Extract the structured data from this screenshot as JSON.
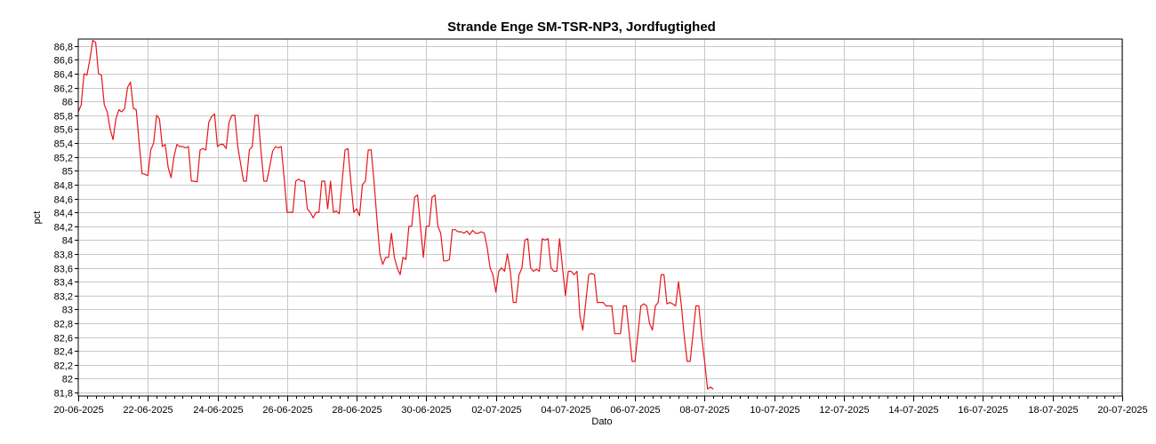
{
  "chart_data": {
    "type": "line",
    "title": "Strande Enge SM-TSR-NP3, Jordfugtighed",
    "xlabel": "Dato",
    "ylabel": "pct",
    "x_range": [
      "2025-06-20",
      "2025-07-20"
    ],
    "ylim": [
      81.75,
      86.9
    ],
    "yticks": [
      81.8,
      82,
      82.2,
      82.4,
      82.6,
      82.8,
      83,
      83.2,
      83.4,
      83.6,
      83.8,
      84,
      84.2,
      84.4,
      84.6,
      84.8,
      85,
      85.2,
      85.4,
      85.6,
      85.8,
      86,
      86.2,
      86.4,
      86.6,
      86.8
    ],
    "ytick_labels": [
      "81,8",
      "82",
      "82,2",
      "82,4",
      "82,6",
      "82,8",
      "83",
      "83,2",
      "83,4",
      "83,6",
      "83,8",
      "84",
      "84,2",
      "84,4",
      "84,6",
      "84,8",
      "85",
      "85,2",
      "85,4",
      "85,6",
      "85,8",
      "86",
      "86,2",
      "86,4",
      "86,6",
      "86,8"
    ],
    "xticks": [
      "2025-06-20",
      "2025-06-22",
      "2025-06-24",
      "2025-06-26",
      "2025-06-28",
      "2025-06-30",
      "2025-07-02",
      "2025-07-04",
      "2025-07-06",
      "2025-07-08",
      "2025-07-10",
      "2025-07-12",
      "2025-07-14",
      "2025-07-16",
      "2025-07-18",
      "2025-07-20"
    ],
    "xtick_labels": [
      "20-06-2025",
      "22-06-2025",
      "24-06-2025",
      "26-06-2025",
      "28-06-2025",
      "30-06-2025",
      "02-07-2025",
      "04-07-2025",
      "06-07-2025",
      "08-07-2025",
      "10-07-2025",
      "12-07-2025",
      "14-07-2025",
      "16-07-2025",
      "18-07-2025",
      "20-07-2025"
    ],
    "grid": true,
    "series": [
      {
        "color": "#e8151b",
        "points": [
          [
            "2025-06-20T00:00",
            85.85
          ],
          [
            "2025-06-20T02:00",
            85.95
          ],
          [
            "2025-06-20T04:00",
            86.4
          ],
          [
            "2025-06-20T06:00",
            86.38
          ],
          [
            "2025-06-20T08:00",
            86.6
          ],
          [
            "2025-06-20T10:00",
            86.88
          ],
          [
            "2025-06-20T12:00",
            86.85
          ],
          [
            "2025-06-20T14:00",
            86.4
          ],
          [
            "2025-06-20T16:00",
            86.38
          ],
          [
            "2025-06-20T18:00",
            85.95
          ],
          [
            "2025-06-20T20:00",
            85.85
          ],
          [
            "2025-06-20T22:00",
            85.6
          ],
          [
            "2025-06-21T00:00",
            85.45
          ],
          [
            "2025-06-21T02:00",
            85.75
          ],
          [
            "2025-06-21T04:00",
            85.88
          ],
          [
            "2025-06-21T06:00",
            85.85
          ],
          [
            "2025-06-21T08:00",
            85.9
          ],
          [
            "2025-06-21T10:00",
            86.2
          ],
          [
            "2025-06-21T12:00",
            86.28
          ],
          [
            "2025-06-21T14:00",
            85.9
          ],
          [
            "2025-06-21T16:00",
            85.88
          ],
          [
            "2025-06-21T18:00",
            85.4
          ],
          [
            "2025-06-21T20:00",
            84.96
          ],
          [
            "2025-06-21T22:00",
            84.95
          ],
          [
            "2025-06-22T00:00",
            84.93
          ],
          [
            "2025-06-22T02:00",
            85.3
          ],
          [
            "2025-06-22T04:00",
            85.4
          ],
          [
            "2025-06-22T06:00",
            85.8
          ],
          [
            "2025-06-22T08:00",
            85.75
          ],
          [
            "2025-06-22T10:00",
            85.35
          ],
          [
            "2025-06-22T12:00",
            85.38
          ],
          [
            "2025-06-22T14:00",
            85.05
          ],
          [
            "2025-06-22T16:00",
            84.9
          ],
          [
            "2025-06-22T18:00",
            85.2
          ],
          [
            "2025-06-22T20:00",
            85.38
          ],
          [
            "2025-06-22T22:00",
            85.35
          ],
          [
            "2025-06-23T00:00",
            85.35
          ],
          [
            "2025-06-23T02:00",
            85.33
          ],
          [
            "2025-06-23T04:00",
            85.35
          ],
          [
            "2025-06-23T06:00",
            84.85
          ],
          [
            "2025-06-23T08:00",
            84.85
          ],
          [
            "2025-06-23T10:00",
            84.84
          ],
          [
            "2025-06-23T12:00",
            85.3
          ],
          [
            "2025-06-23T14:00",
            85.32
          ],
          [
            "2025-06-23T16:00",
            85.3
          ],
          [
            "2025-06-23T18:00",
            85.7
          ],
          [
            "2025-06-23T20:00",
            85.78
          ],
          [
            "2025-06-23T22:00",
            85.82
          ],
          [
            "2025-06-24T00:00",
            85.35
          ],
          [
            "2025-06-24T02:00",
            85.38
          ],
          [
            "2025-06-24T04:00",
            85.38
          ],
          [
            "2025-06-24T06:00",
            85.32
          ],
          [
            "2025-06-24T08:00",
            85.7
          ],
          [
            "2025-06-24T10:00",
            85.8
          ],
          [
            "2025-06-24T12:00",
            85.8
          ],
          [
            "2025-06-24T14:00",
            85.35
          ],
          [
            "2025-06-24T16:00",
            85.1
          ],
          [
            "2025-06-24T18:00",
            84.85
          ],
          [
            "2025-06-24T20:00",
            84.85
          ],
          [
            "2025-06-24T22:00",
            85.3
          ],
          [
            "2025-06-25T00:00",
            85.35
          ],
          [
            "2025-06-25T02:00",
            85.8
          ],
          [
            "2025-06-25T04:00",
            85.8
          ],
          [
            "2025-06-25T06:00",
            85.3
          ],
          [
            "2025-06-25T08:00",
            84.85
          ],
          [
            "2025-06-25T10:00",
            84.85
          ],
          [
            "2025-06-25T12:00",
            85.05
          ],
          [
            "2025-06-25T14:00",
            85.28
          ],
          [
            "2025-06-25T16:00",
            85.35
          ],
          [
            "2025-06-25T18:00",
            85.33
          ],
          [
            "2025-06-25T20:00",
            85.35
          ],
          [
            "2025-06-25T22:00",
            84.9
          ],
          [
            "2025-06-26T00:00",
            84.4
          ],
          [
            "2025-06-26T02:00",
            84.4
          ],
          [
            "2025-06-26T04:00",
            84.4
          ],
          [
            "2025-06-26T06:00",
            84.85
          ],
          [
            "2025-06-26T08:00",
            84.88
          ],
          [
            "2025-06-26T10:00",
            84.85
          ],
          [
            "2025-06-26T12:00",
            84.85
          ],
          [
            "2025-06-26T14:00",
            84.45
          ],
          [
            "2025-06-26T16:00",
            84.4
          ],
          [
            "2025-06-26T18:00",
            84.32
          ],
          [
            "2025-06-26T20:00",
            84.4
          ],
          [
            "2025-06-26T22:00",
            84.4
          ],
          [
            "2025-06-27T00:00",
            84.85
          ],
          [
            "2025-06-27T02:00",
            84.85
          ],
          [
            "2025-06-27T04:00",
            84.45
          ],
          [
            "2025-06-27T06:00",
            84.85
          ],
          [
            "2025-06-27T08:00",
            84.4
          ],
          [
            "2025-06-27T10:00",
            84.42
          ],
          [
            "2025-06-27T12:00",
            84.38
          ],
          [
            "2025-06-27T14:00",
            84.85
          ],
          [
            "2025-06-27T16:00",
            85.3
          ],
          [
            "2025-06-27T18:00",
            85.32
          ],
          [
            "2025-06-27T20:00",
            84.85
          ],
          [
            "2025-06-27T22:00",
            84.4
          ],
          [
            "2025-06-28T00:00",
            84.45
          ],
          [
            "2025-06-28T02:00",
            84.35
          ],
          [
            "2025-06-28T04:00",
            84.8
          ],
          [
            "2025-06-28T06:00",
            84.85
          ],
          [
            "2025-06-28T08:00",
            85.3
          ],
          [
            "2025-06-28T10:00",
            85.3
          ],
          [
            "2025-06-28T12:00",
            84.85
          ],
          [
            "2025-06-28T14:00",
            84.3
          ],
          [
            "2025-06-28T16:00",
            83.8
          ],
          [
            "2025-06-28T18:00",
            83.65
          ],
          [
            "2025-06-28T20:00",
            83.75
          ],
          [
            "2025-06-28T22:00",
            83.75
          ],
          [
            "2025-06-29T00:00",
            84.1
          ],
          [
            "2025-06-29T02:00",
            83.75
          ],
          [
            "2025-06-29T04:00",
            83.6
          ],
          [
            "2025-06-29T06:00",
            83.5
          ],
          [
            "2025-06-29T08:00",
            83.75
          ],
          [
            "2025-06-29T10:00",
            83.72
          ],
          [
            "2025-06-29T12:00",
            84.2
          ],
          [
            "2025-06-29T14:00",
            84.2
          ],
          [
            "2025-06-29T16:00",
            84.62
          ],
          [
            "2025-06-29T18:00",
            84.65
          ],
          [
            "2025-06-29T20:00",
            84.2
          ],
          [
            "2025-06-29T22:00",
            83.75
          ],
          [
            "2025-06-30T00:00",
            84.2
          ],
          [
            "2025-06-30T02:00",
            84.2
          ],
          [
            "2025-06-30T04:00",
            84.62
          ],
          [
            "2025-06-30T06:00",
            84.65
          ],
          [
            "2025-06-30T08:00",
            84.2
          ],
          [
            "2025-06-30T10:00",
            84.1
          ],
          [
            "2025-06-30T12:00",
            83.7
          ],
          [
            "2025-06-30T14:00",
            83.7
          ],
          [
            "2025-06-30T16:00",
            83.72
          ],
          [
            "2025-06-30T18:00",
            84.15
          ],
          [
            "2025-06-30T20:00",
            84.15
          ],
          [
            "2025-06-30T22:00",
            84.12
          ],
          [
            "2025-07-01T00:00",
            84.12
          ],
          [
            "2025-07-01T02:00",
            84.1
          ],
          [
            "2025-07-01T04:00",
            84.13
          ],
          [
            "2025-07-01T06:00",
            84.08
          ],
          [
            "2025-07-01T08:00",
            84.14
          ],
          [
            "2025-07-01T10:00",
            84.1
          ],
          [
            "2025-07-01T12:00",
            84.1
          ],
          [
            "2025-07-01T14:00",
            84.12
          ],
          [
            "2025-07-01T16:00",
            84.1
          ],
          [
            "2025-07-01T18:00",
            83.9
          ],
          [
            "2025-07-01T20:00",
            83.6
          ],
          [
            "2025-07-01T22:00",
            83.5
          ],
          [
            "2025-07-02T00:00",
            83.25
          ],
          [
            "2025-07-02T02:00",
            83.55
          ],
          [
            "2025-07-02T04:00",
            83.6
          ],
          [
            "2025-07-02T06:00",
            83.55
          ],
          [
            "2025-07-02T08:00",
            83.8
          ],
          [
            "2025-07-02T10:00",
            83.55
          ],
          [
            "2025-07-02T12:00",
            83.1
          ],
          [
            "2025-07-02T14:00",
            83.1
          ],
          [
            "2025-07-02T16:00",
            83.5
          ],
          [
            "2025-07-02T18:00",
            83.6
          ],
          [
            "2025-07-02T20:00",
            84.0
          ],
          [
            "2025-07-02T22:00",
            84.02
          ],
          [
            "2025-07-03T00:00",
            83.6
          ],
          [
            "2025-07-03T02:00",
            83.55
          ],
          [
            "2025-07-03T04:00",
            83.58
          ],
          [
            "2025-07-03T06:00",
            83.55
          ],
          [
            "2025-07-03T08:00",
            84.02
          ],
          [
            "2025-07-03T10:00",
            84.0
          ],
          [
            "2025-07-03T12:00",
            84.02
          ],
          [
            "2025-07-03T14:00",
            83.6
          ],
          [
            "2025-07-03T16:00",
            83.55
          ],
          [
            "2025-07-03T18:00",
            83.55
          ],
          [
            "2025-07-03T20:00",
            84.02
          ],
          [
            "2025-07-03T22:00",
            83.6
          ],
          [
            "2025-07-04T00:00",
            83.2
          ],
          [
            "2025-07-04T02:00",
            83.55
          ],
          [
            "2025-07-04T04:00",
            83.55
          ],
          [
            "2025-07-04T06:00",
            83.5
          ],
          [
            "2025-07-04T08:00",
            83.55
          ],
          [
            "2025-07-04T10:00",
            82.9
          ],
          [
            "2025-07-04T12:00",
            82.7
          ],
          [
            "2025-07-04T14:00",
            83.1
          ],
          [
            "2025-07-04T16:00",
            83.5
          ],
          [
            "2025-07-04T18:00",
            83.52
          ],
          [
            "2025-07-04T20:00",
            83.5
          ],
          [
            "2025-07-04T22:00",
            83.1
          ],
          [
            "2025-07-05T00:00",
            83.1
          ],
          [
            "2025-07-05T02:00",
            83.1
          ],
          [
            "2025-07-05T04:00",
            83.05
          ],
          [
            "2025-07-05T06:00",
            83.05
          ],
          [
            "2025-07-05T08:00",
            83.05
          ],
          [
            "2025-07-05T10:00",
            82.65
          ],
          [
            "2025-07-05T12:00",
            82.65
          ],
          [
            "2025-07-05T14:00",
            82.65
          ],
          [
            "2025-07-05T16:00",
            83.05
          ],
          [
            "2025-07-05T18:00",
            83.05
          ],
          [
            "2025-07-05T20:00",
            82.65
          ],
          [
            "2025-07-05T22:00",
            82.25
          ],
          [
            "2025-07-06T00:00",
            82.25
          ],
          [
            "2025-07-06T02:00",
            82.65
          ],
          [
            "2025-07-06T04:00",
            83.05
          ],
          [
            "2025-07-06T06:00",
            83.08
          ],
          [
            "2025-07-06T08:00",
            83.05
          ],
          [
            "2025-07-06T10:00",
            82.8
          ],
          [
            "2025-07-06T12:00",
            82.7
          ],
          [
            "2025-07-06T14:00",
            83.05
          ],
          [
            "2025-07-06T16:00",
            83.1
          ],
          [
            "2025-07-06T18:00",
            83.5
          ],
          [
            "2025-07-06T20:00",
            83.5
          ],
          [
            "2025-07-06T22:00",
            83.08
          ],
          [
            "2025-07-07T00:00",
            83.1
          ],
          [
            "2025-07-07T02:00",
            83.08
          ],
          [
            "2025-07-07T04:00",
            83.05
          ],
          [
            "2025-07-07T06:00",
            83.4
          ],
          [
            "2025-07-07T08:00",
            83.05
          ],
          [
            "2025-07-07T10:00",
            82.6
          ],
          [
            "2025-07-07T12:00",
            82.25
          ],
          [
            "2025-07-07T14:00",
            82.25
          ],
          [
            "2025-07-07T16:00",
            82.65
          ],
          [
            "2025-07-07T18:00",
            83.05
          ],
          [
            "2025-07-07T20:00",
            83.05
          ],
          [
            "2025-07-07T22:00",
            82.6
          ],
          [
            "2025-07-08T00:00",
            82.25
          ],
          [
            "2025-07-08T02:00",
            81.85
          ],
          [
            "2025-07-08T04:00",
            81.88
          ],
          [
            "2025-07-08T06:00",
            81.85
          ]
        ]
      }
    ]
  }
}
